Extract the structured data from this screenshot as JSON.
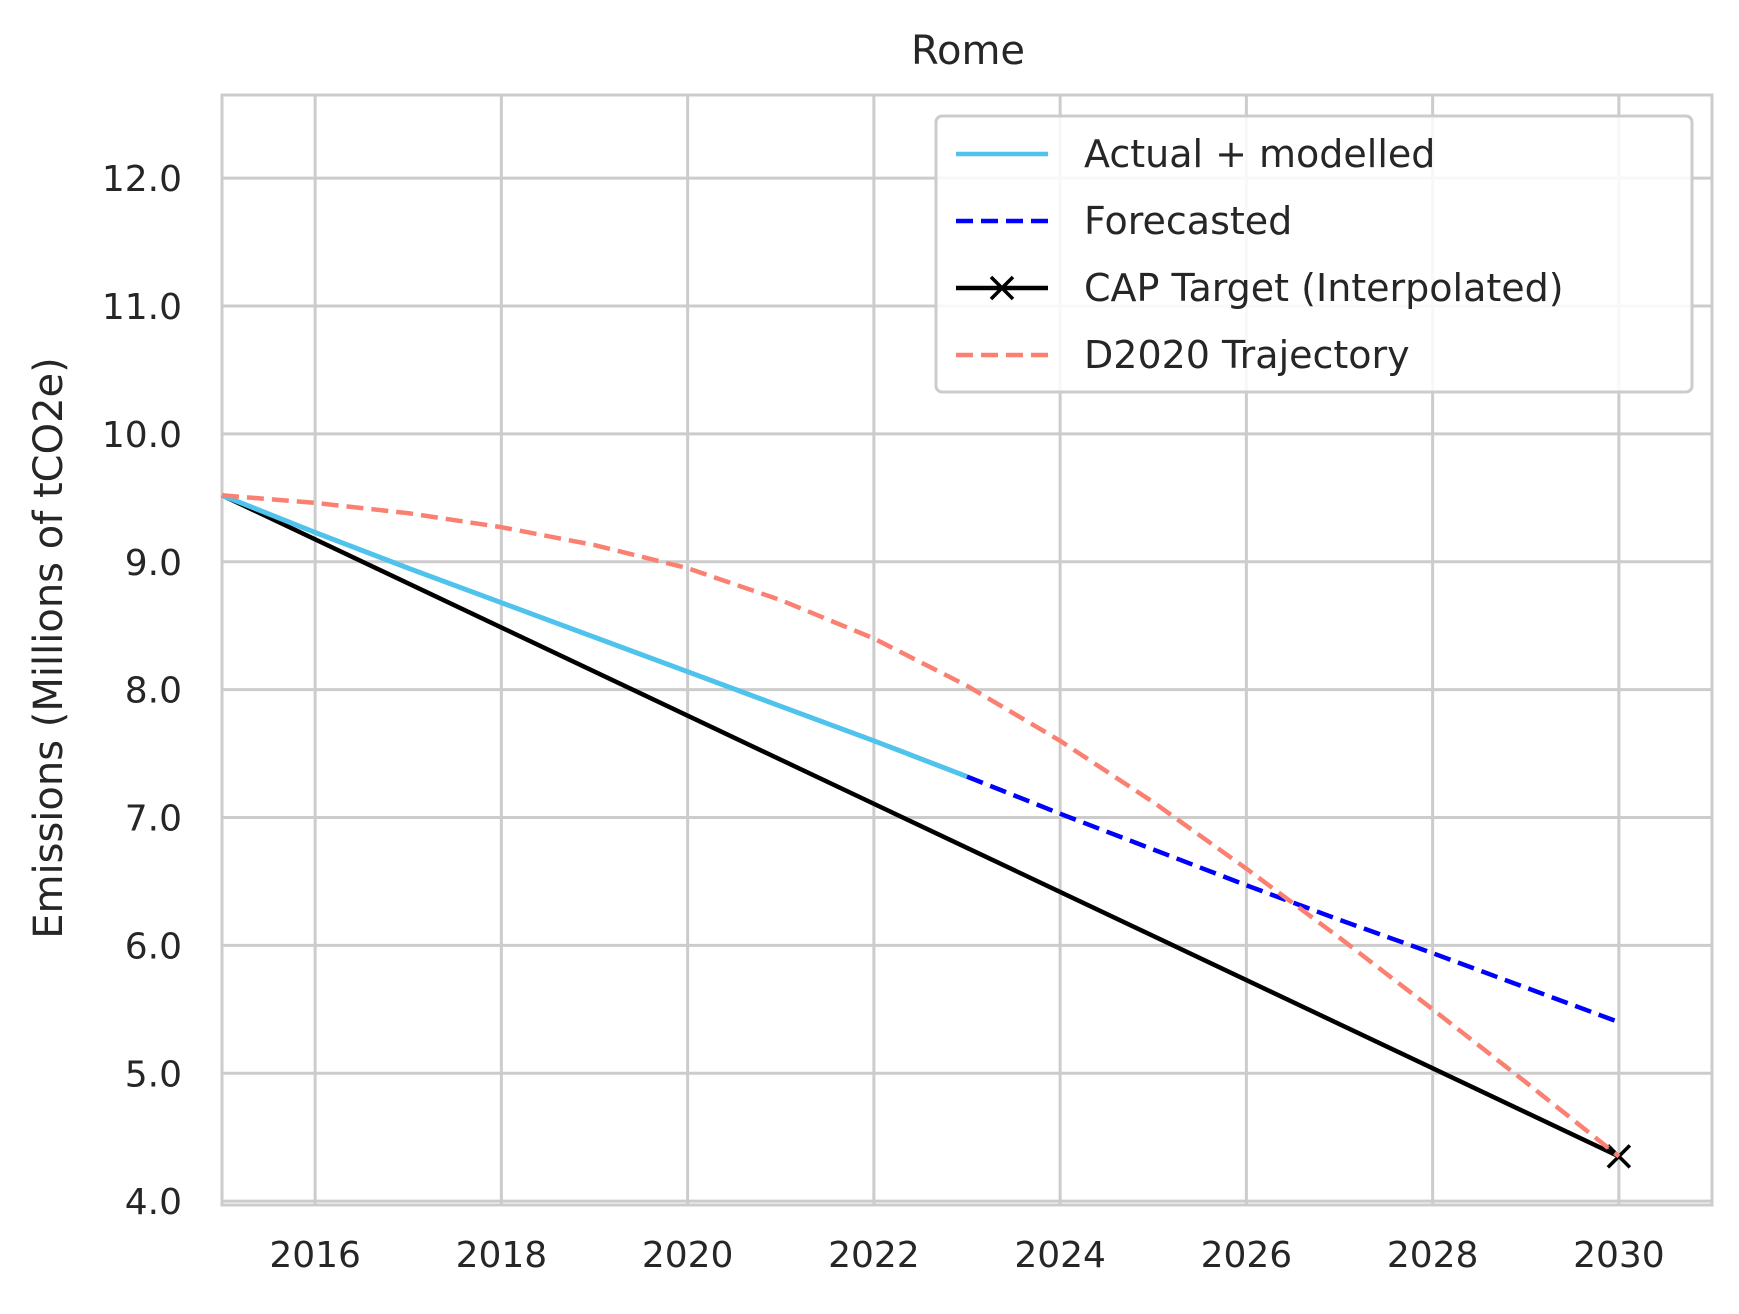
{
  "chart_data": {
    "type": "line",
    "title": "Rome",
    "xlabel": "",
    "ylabel": "Emissions (Millions of tCO2e)",
    "xlim": [
      2015,
      2031
    ],
    "ylim": [
      3.97,
      12.65
    ],
    "xticks": [
      2016,
      2018,
      2020,
      2022,
      2024,
      2026,
      2028,
      2030
    ],
    "xtick_labels": [
      "2016",
      "2018",
      "2020",
      "2022",
      "2024",
      "2026",
      "2028",
      "2030"
    ],
    "yticks": [
      4.0,
      5.0,
      6.0,
      7.0,
      8.0,
      9.0,
      10.0,
      11.0,
      12.0
    ],
    "ytick_labels": [
      "4.0",
      "5.0",
      "6.0",
      "7.0",
      "8.0",
      "9.0",
      "10.0",
      "11.0",
      "12.0"
    ],
    "grid": true,
    "legend_position": "top-right",
    "series": [
      {
        "name": "Actual + modelled",
        "color": "#4fc3ec",
        "style": "solid",
        "x": [
          2015,
          2016,
          2017,
          2018,
          2019,
          2020,
          2021,
          2022,
          2023
        ],
        "y": [
          9.52,
          9.23,
          8.95,
          8.68,
          8.41,
          8.14,
          7.87,
          7.6,
          7.32
        ]
      },
      {
        "name": "Forecasted",
        "color": "#0000ff",
        "style": "dashed",
        "x": [
          2023,
          2024,
          2025,
          2026,
          2027,
          2028,
          2029,
          2030
        ],
        "y": [
          7.32,
          7.03,
          6.75,
          6.47,
          6.2,
          5.94,
          5.67,
          5.4
        ]
      },
      {
        "name": "CAP Target (Interpolated)",
        "color": "#000000",
        "style": "solid",
        "marker": "x",
        "marker_x": [
          2030
        ],
        "marker_y": [
          4.35
        ],
        "x": [
          2015,
          2030
        ],
        "y": [
          9.52,
          4.35
        ]
      },
      {
        "name": "D2020 Trajectory",
        "color": "#fa8072",
        "style": "dashed",
        "x": [
          2015,
          2016,
          2017,
          2018,
          2019,
          2020,
          2021,
          2022,
          2023,
          2024,
          2025,
          2026,
          2027,
          2028,
          2029,
          2030
        ],
        "y": [
          9.52,
          9.46,
          9.38,
          9.27,
          9.13,
          8.95,
          8.7,
          8.4,
          8.03,
          7.6,
          7.12,
          6.6,
          6.06,
          5.5,
          4.93,
          4.35
        ]
      }
    ]
  }
}
